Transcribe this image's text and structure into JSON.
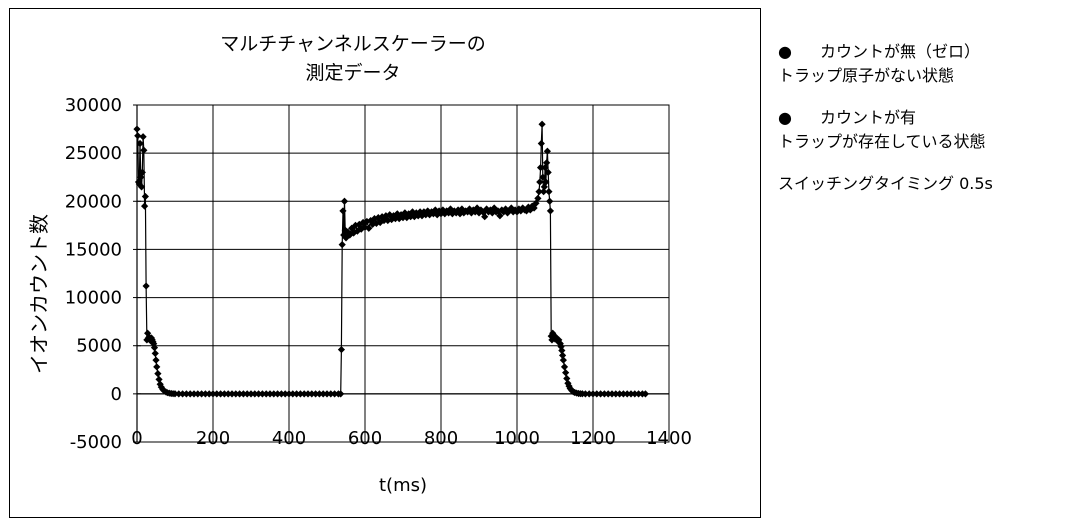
{
  "chart_data": {
    "type": "scatter",
    "title_lines": [
      "マルチチャンネルスケーラーの",
      "測定データ"
    ],
    "xlabel": "t(ms)",
    "ylabel": "イオンカウント数",
    "xlim": [
      0,
      1400
    ],
    "ylim": [
      -5000,
      30000
    ],
    "xticks": [
      0,
      200,
      400,
      600,
      800,
      1000,
      1200,
      1400
    ],
    "yticks": [
      -5000,
      0,
      5000,
      10000,
      15000,
      20000,
      25000,
      30000
    ],
    "x_tick_labels": [
      "0",
      "200",
      "400",
      "600",
      "800",
      "1000",
      "1200",
      "1400"
    ],
    "y_tick_labels": [
      "-5000",
      "0",
      "5000",
      "10000",
      "15000",
      "20000",
      "25000",
      "30000"
    ],
    "grid": true,
    "marker": "diamond",
    "series": [
      {
        "color": "#000000",
        "points": [
          [
            0,
            27500
          ],
          [
            2,
            26800
          ],
          [
            4,
            22000
          ],
          [
            6,
            21800
          ],
          [
            8,
            26000
          ],
          [
            10,
            22500
          ],
          [
            12,
            21500
          ],
          [
            14,
            23000
          ],
          [
            16,
            26700
          ],
          [
            18,
            25300
          ],
          [
            20,
            19500
          ],
          [
            22,
            20500
          ],
          [
            24,
            11200
          ],
          [
            26,
            5600
          ],
          [
            28,
            6300
          ],
          [
            30,
            5800
          ],
          [
            32,
            5900
          ],
          [
            34,
            5600
          ],
          [
            36,
            5500
          ],
          [
            38,
            5800
          ],
          [
            40,
            5600
          ],
          [
            42,
            5400
          ],
          [
            44,
            5200
          ],
          [
            46,
            4800
          ],
          [
            48,
            4200
          ],
          [
            50,
            3500
          ],
          [
            52,
            2800
          ],
          [
            55,
            2100
          ],
          [
            58,
            1500
          ],
          [
            61,
            1000
          ],
          [
            64,
            700
          ],
          [
            68,
            450
          ],
          [
            72,
            300
          ],
          [
            76,
            200
          ],
          [
            80,
            120
          ],
          [
            85,
            70
          ],
          [
            90,
            40
          ],
          [
            95,
            20
          ],
          [
            100,
            10
          ],
          [
            110,
            0
          ],
          [
            120,
            0
          ],
          [
            130,
            0
          ],
          [
            140,
            0
          ],
          [
            150,
            0
          ],
          [
            160,
            0
          ],
          [
            170,
            0
          ],
          [
            180,
            0
          ],
          [
            190,
            0
          ],
          [
            200,
            0
          ],
          [
            210,
            0
          ],
          [
            220,
            0
          ],
          [
            230,
            0
          ],
          [
            240,
            0
          ],
          [
            250,
            0
          ],
          [
            260,
            0
          ],
          [
            270,
            0
          ],
          [
            280,
            0
          ],
          [
            290,
            0
          ],
          [
            300,
            0
          ],
          [
            310,
            0
          ],
          [
            320,
            0
          ],
          [
            330,
            0
          ],
          [
            340,
            0
          ],
          [
            350,
            0
          ],
          [
            360,
            0
          ],
          [
            370,
            0
          ],
          [
            380,
            0
          ],
          [
            390,
            0
          ],
          [
            400,
            0
          ],
          [
            410,
            0
          ],
          [
            420,
            0
          ],
          [
            430,
            0
          ],
          [
            440,
            0
          ],
          [
            450,
            0
          ],
          [
            460,
            0
          ],
          [
            470,
            0
          ],
          [
            480,
            0
          ],
          [
            490,
            0
          ],
          [
            500,
            0
          ],
          [
            510,
            0
          ],
          [
            520,
            0
          ],
          [
            530,
            0
          ],
          [
            536,
            0
          ],
          [
            538,
            4600
          ],
          [
            540,
            15500
          ],
          [
            542,
            19000
          ],
          [
            544,
            16500
          ],
          [
            546,
            20000
          ],
          [
            548,
            17000
          ],
          [
            550,
            16200
          ],
          [
            555,
            16800
          ],
          [
            560,
            16500
          ],
          [
            565,
            17200
          ],
          [
            570,
            16700
          ],
          [
            575,
            17500
          ],
          [
            580,
            16900
          ],
          [
            585,
            17600
          ],
          [
            590,
            17100
          ],
          [
            595,
            17800
          ],
          [
            600,
            17300
          ],
          [
            605,
            17900
          ],
          [
            610,
            17200
          ],
          [
            615,
            18000
          ],
          [
            620,
            17600
          ],
          [
            625,
            18200
          ],
          [
            630,
            17700
          ],
          [
            635,
            18300
          ],
          [
            640,
            17800
          ],
          [
            645,
            18400
          ],
          [
            650,
            18000
          ],
          [
            655,
            18500
          ],
          [
            660,
            18000
          ],
          [
            665,
            18600
          ],
          [
            670,
            18100
          ],
          [
            675,
            18500
          ],
          [
            680,
            18200
          ],
          [
            685,
            18700
          ],
          [
            690,
            18200
          ],
          [
            695,
            18600
          ],
          [
            700,
            18300
          ],
          [
            705,
            18800
          ],
          [
            710,
            18300
          ],
          [
            715,
            18700
          ],
          [
            720,
            18400
          ],
          [
            725,
            18900
          ],
          [
            730,
            18400
          ],
          [
            735,
            18800
          ],
          [
            740,
            18500
          ],
          [
            745,
            18900
          ],
          [
            750,
            18500
          ],
          [
            755,
            18900
          ],
          [
            760,
            18600
          ],
          [
            765,
            19000
          ],
          [
            770,
            18600
          ],
          [
            775,
            18900
          ],
          [
            780,
            18700
          ],
          [
            785,
            19100
          ],
          [
            790,
            18600
          ],
          [
            795,
            19000
          ],
          [
            800,
            18700
          ],
          [
            805,
            19100
          ],
          [
            810,
            18700
          ],
          [
            815,
            19000
          ],
          [
            820,
            18800
          ],
          [
            825,
            19200
          ],
          [
            830,
            18700
          ],
          [
            835,
            19000
          ],
          [
            840,
            18800
          ],
          [
            845,
            19100
          ],
          [
            850,
            18700
          ],
          [
            855,
            19200
          ],
          [
            860,
            18800
          ],
          [
            865,
            19000
          ],
          [
            870,
            18900
          ],
          [
            875,
            19200
          ],
          [
            880,
            18800
          ],
          [
            885,
            19100
          ],
          [
            890,
            18900
          ],
          [
            895,
            19300
          ],
          [
            900,
            18800
          ],
          [
            905,
            19100
          ],
          [
            910,
            18900
          ],
          [
            915,
            18400
          ],
          [
            920,
            19200
          ],
          [
            925,
            18900
          ],
          [
            930,
            19100
          ],
          [
            935,
            18800
          ],
          [
            940,
            19300
          ],
          [
            945,
            18900
          ],
          [
            950,
            19000
          ],
          [
            955,
            18500
          ],
          [
            960,
            19100
          ],
          [
            965,
            18900
          ],
          [
            970,
            19200
          ],
          [
            975,
            18800
          ],
          [
            980,
            19000
          ],
          [
            985,
            19300
          ],
          [
            990,
            18900
          ],
          [
            995,
            19100
          ],
          [
            1000,
            18900
          ],
          [
            1005,
            19200
          ],
          [
            1010,
            19000
          ],
          [
            1015,
            19300
          ],
          [
            1020,
            19100
          ],
          [
            1025,
            19000
          ],
          [
            1030,
            19400
          ],
          [
            1035,
            19100
          ],
          [
            1040,
            19500
          ],
          [
            1045,
            19300
          ],
          [
            1050,
            19800
          ],
          [
            1055,
            20300
          ],
          [
            1058,
            21000
          ],
          [
            1060,
            22000
          ],
          [
            1062,
            23500
          ],
          [
            1064,
            26000
          ],
          [
            1066,
            28000
          ],
          [
            1068,
            22500
          ],
          [
            1070,
            21000
          ],
          [
            1072,
            21500
          ],
          [
            1074,
            23500
          ],
          [
            1076,
            22000
          ],
          [
            1078,
            24000
          ],
          [
            1080,
            25200
          ],
          [
            1082,
            23000
          ],
          [
            1084,
            21000
          ],
          [
            1086,
            20000
          ],
          [
            1088,
            19000
          ],
          [
            1090,
            6000
          ],
          [
            1092,
            5600
          ],
          [
            1094,
            6300
          ],
          [
            1096,
            5800
          ],
          [
            1098,
            6000
          ],
          [
            1100,
            5700
          ],
          [
            1102,
            5900
          ],
          [
            1104,
            5600
          ],
          [
            1106,
            5700
          ],
          [
            1108,
            5500
          ],
          [
            1110,
            5600
          ],
          [
            1112,
            5300
          ],
          [
            1114,
            5200
          ],
          [
            1116,
            4900
          ],
          [
            1118,
            4500
          ],
          [
            1120,
            4000
          ],
          [
            1122,
            3500
          ],
          [
            1125,
            2800
          ],
          [
            1128,
            2200
          ],
          [
            1131,
            1600
          ],
          [
            1134,
            1100
          ],
          [
            1137,
            800
          ],
          [
            1140,
            550
          ],
          [
            1144,
            350
          ],
          [
            1148,
            220
          ],
          [
            1152,
            140
          ],
          [
            1157,
            80
          ],
          [
            1162,
            40
          ],
          [
            1167,
            20
          ],
          [
            1172,
            10
          ],
          [
            1180,
            0
          ],
          [
            1190,
            0
          ],
          [
            1200,
            0
          ],
          [
            1210,
            0
          ],
          [
            1220,
            0
          ],
          [
            1230,
            0
          ],
          [
            1240,
            0
          ],
          [
            1250,
            0
          ],
          [
            1260,
            0
          ],
          [
            1270,
            0
          ],
          [
            1280,
            0
          ],
          [
            1290,
            0
          ],
          [
            1300,
            0
          ],
          [
            1310,
            0
          ],
          [
            1320,
            0
          ],
          [
            1330,
            0
          ],
          [
            1338,
            0
          ]
        ]
      }
    ]
  },
  "notes": {
    "bullet1": {
      "bullet": "●",
      "heading": "カウントが無（ゼロ）",
      "subtext": "トラップ原子がない状態"
    },
    "bullet2": {
      "bullet": "●",
      "heading": "カウントが有",
      "subtext": "トラップが存在している状態"
    },
    "switching": "スイッチングタイミング 0.5s"
  }
}
